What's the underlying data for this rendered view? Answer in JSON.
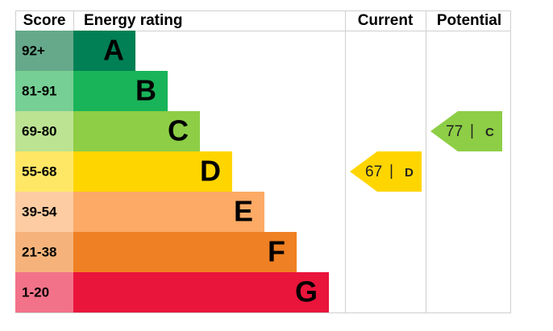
{
  "headers": {
    "score": "Score",
    "rating": "Energy rating",
    "current": "Current",
    "potential": "Potential"
  },
  "bands": [
    {
      "score": "92+",
      "letter": "A",
      "color": "#008054",
      "score_color": "#65a98a"
    },
    {
      "score": "81-91",
      "letter": "B",
      "color": "#19b459",
      "score_color": "#76cf94"
    },
    {
      "score": "69-80",
      "letter": "C",
      "color": "#8dce46",
      "score_color": "#bce392"
    },
    {
      "score": "55-68",
      "letter": "D",
      "color": "#ffd500",
      "score_color": "#ffe766"
    },
    {
      "score": "39-54",
      "letter": "E",
      "color": "#fcaa65",
      "score_color": "#fdcca2"
    },
    {
      "score": "21-38",
      "letter": "F",
      "color": "#ef8023",
      "score_color": "#f5b37b"
    },
    {
      "score": "1-20",
      "letter": "G",
      "color": "#e9153b",
      "score_color": "#f27389"
    }
  ],
  "current": {
    "value": 67,
    "rating": "D"
  },
  "potential": {
    "value": 77,
    "rating": "C"
  }
}
